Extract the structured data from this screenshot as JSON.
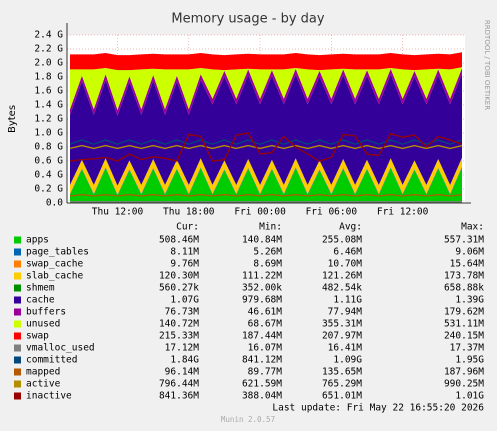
{
  "chart_data": {
    "type": "area",
    "title": "Memory usage - by day",
    "y_label": "Bytes",
    "side_text": "RRDTOOL / TOBI OETIKER",
    "categories": [
      null,
      null,
      null,
      null,
      "Thu 12:00",
      null,
      null,
      null,
      null,
      null,
      "Thu 18:00",
      null,
      null,
      null,
      null,
      null,
      "Fri 00:00",
      null,
      null,
      null,
      null,
      null,
      "Fri 06:00",
      null,
      null,
      null,
      null,
      null,
      "Fri 12:00",
      null,
      null,
      null,
      null,
      null
    ],
    "ylim": [
      0,
      2.4
    ],
    "yticks": [
      {
        "value": 0,
        "label": "0.0"
      },
      {
        "value": 0.2,
        "label": "0.2 G"
      },
      {
        "value": 0.4,
        "label": "0.4 G"
      },
      {
        "value": 0.6,
        "label": "0.6 G"
      },
      {
        "value": 0.8,
        "label": "0.8 G"
      },
      {
        "value": 1.0,
        "label": "1.0 G"
      },
      {
        "value": 1.2,
        "label": "1.2 G"
      },
      {
        "value": 1.4,
        "label": "1.4 G"
      },
      {
        "value": 1.6,
        "label": "1.6 G"
      },
      {
        "value": 1.8,
        "label": "1.8 G"
      },
      {
        "value": 2.0,
        "label": "2.0 G"
      },
      {
        "value": 2.2,
        "label": "2.2 G"
      },
      {
        "value": 2.4,
        "label": "2.4 G"
      }
    ],
    "grid": true,
    "series": [
      {
        "name": "apps",
        "color": "#00cc00",
        "kind": "area",
        "values": [
          0.12,
          0.48,
          0.12,
          0.5,
          0.11,
          0.47,
          0.12,
          0.49,
          0.12,
          0.48,
          0.12,
          0.5,
          0.12,
          0.47,
          0.12,
          0.49,
          0.12,
          0.48,
          0.12,
          0.5,
          0.12,
          0.47,
          0.12,
          0.49,
          0.12,
          0.48,
          0.12,
          0.5,
          0.12,
          0.47,
          0.12,
          0.49,
          0.12,
          0.51
        ]
      },
      {
        "name": "page_tables",
        "color": "#0066b3",
        "kind": "area",
        "values": [
          0.008,
          0.008,
          0.008,
          0.008,
          0.008,
          0.008,
          0.008,
          0.008,
          0.008,
          0.008,
          0.008,
          0.008,
          0.008,
          0.008,
          0.008,
          0.008,
          0.008,
          0.008,
          0.008,
          0.008,
          0.008,
          0.008,
          0.008,
          0.008,
          0.008,
          0.008,
          0.008,
          0.008,
          0.008,
          0.008,
          0.008,
          0.008,
          0.008,
          0.008
        ]
      },
      {
        "name": "swap_cache",
        "color": "#ff8000",
        "kind": "area",
        "values": [
          0.01,
          0.01,
          0.01,
          0.01,
          0.01,
          0.01,
          0.01,
          0.01,
          0.01,
          0.01,
          0.01,
          0.01,
          0.01,
          0.01,
          0.01,
          0.01,
          0.01,
          0.01,
          0.01,
          0.01,
          0.01,
          0.01,
          0.01,
          0.01,
          0.01,
          0.01,
          0.01,
          0.01,
          0.01,
          0.01,
          0.01,
          0.01,
          0.01,
          0.01
        ]
      },
      {
        "name": "slab_cache",
        "color": "#ffcc00",
        "kind": "area",
        "values": [
          0.12,
          0.12,
          0.12,
          0.12,
          0.12,
          0.12,
          0.12,
          0.12,
          0.12,
          0.12,
          0.12,
          0.12,
          0.12,
          0.12,
          0.12,
          0.12,
          0.12,
          0.12,
          0.12,
          0.12,
          0.12,
          0.12,
          0.12,
          0.12,
          0.12,
          0.12,
          0.12,
          0.12,
          0.12,
          0.12,
          0.12,
          0.12,
          0.12,
          0.12
        ]
      },
      {
        "name": "shmem",
        "color": "#008f00",
        "kind": "area",
        "values": [
          0.0005,
          0.0005,
          0.0005,
          0.0005,
          0.0005,
          0.0005,
          0.0005,
          0.0005,
          0.0005,
          0.0005,
          0.0005,
          0.0005,
          0.0005,
          0.0005,
          0.0005,
          0.0005,
          0.0005,
          0.0005,
          0.0005,
          0.0005,
          0.0005,
          0.0005,
          0.0005,
          0.0005,
          0.0005,
          0.0005,
          0.0005,
          0.0005,
          0.0005,
          0.0005,
          0.0005,
          0.0005,
          0.0005,
          0.0005
        ]
      },
      {
        "name": "cache",
        "color": "#330099",
        "kind": "area",
        "values": [
          1.0,
          1.12,
          1.0,
          1.12,
          1.0,
          1.12,
          1.0,
          1.12,
          1.0,
          1.12,
          1.0,
          1.12,
          1.15,
          1.2,
          1.15,
          1.2,
          1.15,
          1.2,
          1.15,
          1.2,
          1.15,
          1.2,
          1.15,
          1.2,
          1.15,
          1.2,
          1.15,
          1.2,
          1.15,
          1.2,
          1.15,
          1.2,
          1.15,
          1.2
        ]
      },
      {
        "name": "buffers",
        "color": "#990099",
        "kind": "area",
        "values": [
          0.08,
          0.08,
          0.08,
          0.08,
          0.08,
          0.08,
          0.08,
          0.08,
          0.08,
          0.08,
          0.08,
          0.08,
          0.08,
          0.08,
          0.08,
          0.08,
          0.08,
          0.08,
          0.08,
          0.08,
          0.08,
          0.08,
          0.08,
          0.08,
          0.08,
          0.08,
          0.08,
          0.08,
          0.08,
          0.08,
          0.08,
          0.08,
          0.08,
          0.08
        ]
      },
      {
        "name": "unused",
        "color": "#ccff00",
        "kind": "area",
        "values": [
          0.57,
          0.09,
          0.57,
          0.09,
          0.57,
          0.09,
          0.57,
          0.09,
          0.57,
          0.09,
          0.57,
          0.09,
          0.42,
          0.01,
          0.42,
          0.01,
          0.42,
          0.01,
          0.42,
          0.01,
          0.42,
          0.01,
          0.42,
          0.01,
          0.42,
          0.01,
          0.42,
          0.01,
          0.42,
          0.01,
          0.42,
          0.01,
          0.42,
          0.01
        ]
      },
      {
        "name": "swap",
        "color": "#ff0000",
        "kind": "area",
        "values": [
          0.215,
          0.215,
          0.215,
          0.215,
          0.215,
          0.215,
          0.215,
          0.215,
          0.215,
          0.215,
          0.215,
          0.215,
          0.215,
          0.215,
          0.215,
          0.215,
          0.215,
          0.215,
          0.215,
          0.215,
          0.215,
          0.215,
          0.215,
          0.215,
          0.215,
          0.215,
          0.215,
          0.215,
          0.215,
          0.215,
          0.215,
          0.215,
          0.215,
          0.215
        ]
      },
      {
        "name": "vmalloc_used",
        "color": "#808080",
        "kind": "line",
        "values": [
          0.017,
          0.017,
          0.017,
          0.017,
          0.017,
          0.017,
          0.017,
          0.017,
          0.017,
          0.017,
          0.017,
          0.017,
          0.017,
          0.017,
          0.017,
          0.017,
          0.017,
          0.017,
          0.017,
          0.017,
          0.017,
          0.017,
          0.017,
          0.017,
          0.017,
          0.017,
          0.017,
          0.017,
          0.017,
          0.017,
          0.017,
          0.017,
          0.017,
          0.017
        ]
      },
      {
        "name": "committed",
        "color": "#00487d",
        "kind": "line",
        "values": [
          0.84,
          0.9,
          0.84,
          0.9,
          0.84,
          0.9,
          0.84,
          0.9,
          0.84,
          0.9,
          0.84,
          0.9,
          0.84,
          0.9,
          0.84,
          0.9,
          0.84,
          0.9,
          0.84,
          0.9,
          0.84,
          0.9,
          0.84,
          0.9,
          0.84,
          0.9,
          0.84,
          0.9,
          0.84,
          0.9,
          0.84,
          0.9,
          0.84,
          0.9
        ]
      },
      {
        "name": "mapped",
        "color": "#b35a00",
        "kind": "line",
        "values": [
          0.1,
          0.12,
          0.1,
          0.12,
          0.1,
          0.12,
          0.1,
          0.12,
          0.1,
          0.12,
          0.1,
          0.12,
          0.1,
          0.12,
          0.1,
          0.12,
          0.1,
          0.12,
          0.1,
          0.12,
          0.1,
          0.12,
          0.1,
          0.12,
          0.1,
          0.12,
          0.1,
          0.12,
          0.1,
          0.12,
          0.1,
          0.12,
          0.1,
          0.12
        ]
      },
      {
        "name": "active",
        "color": "#b38f00",
        "kind": "line",
        "values": [
          0.78,
          0.82,
          0.78,
          0.82,
          0.78,
          0.82,
          0.78,
          0.82,
          0.78,
          0.82,
          0.78,
          0.82,
          0.78,
          0.82,
          0.78,
          0.82,
          0.78,
          0.82,
          0.78,
          0.82,
          0.78,
          0.82,
          0.78,
          0.82,
          0.78,
          0.82,
          0.78,
          0.82,
          0.78,
          0.82,
          0.78,
          0.82,
          0.78,
          0.82
        ]
      },
      {
        "name": "inactive",
        "color": "#990000",
        "kind": "line",
        "values": [
          0.6,
          0.62,
          0.63,
          0.65,
          0.6,
          0.7,
          0.62,
          0.66,
          0.64,
          0.6,
          0.98,
          0.95,
          0.6,
          0.62,
          0.97,
          1.0,
          0.7,
          0.72,
          0.95,
          0.8,
          0.7,
          0.6,
          0.65,
          0.98,
          0.96,
          0.7,
          0.68,
          0.99,
          0.94,
          0.97,
          0.8,
          0.95,
          0.9,
          0.84
        ]
      }
    ],
    "legend": {
      "headers": [
        "Cur:",
        "Min:",
        "Avg:",
        "Max:"
      ],
      "rows": [
        [
          "508.46M",
          "140.84M",
          "255.08M",
          "557.31M"
        ],
        [
          "8.11M",
          "5.26M",
          "6.46M",
          "9.06M"
        ],
        [
          "9.76M",
          "8.69M",
          "10.70M",
          "15.64M"
        ],
        [
          "120.30M",
          "111.22M",
          "121.26M",
          "173.78M"
        ],
        [
          "560.27k",
          "352.00k",
          "482.54k",
          "658.88k"
        ],
        [
          "1.07G",
          "979.68M",
          "1.11G",
          "1.39G"
        ],
        [
          "76.73M",
          "46.61M",
          "77.94M",
          "179.62M"
        ],
        [
          "140.72M",
          "68.67M",
          "355.31M",
          "531.11M"
        ],
        [
          "215.33M",
          "187.44M",
          "207.97M",
          "240.15M"
        ],
        [
          "17.12M",
          "16.07M",
          "16.41M",
          "17.37M"
        ],
        [
          "1.84G",
          "841.12M",
          "1.09G",
          "1.95G"
        ],
        [
          "96.14M",
          "89.77M",
          "135.65M",
          "187.96M"
        ],
        [
          "796.44M",
          "621.59M",
          "765.29M",
          "990.25M"
        ],
        [
          "841.36M",
          "388.04M",
          "651.01M",
          "1.01G"
        ]
      ]
    }
  },
  "footer": {
    "last_update": "Last update: Fri May 22 16:55:20 2026",
    "version": "Munin 2.0.57"
  }
}
